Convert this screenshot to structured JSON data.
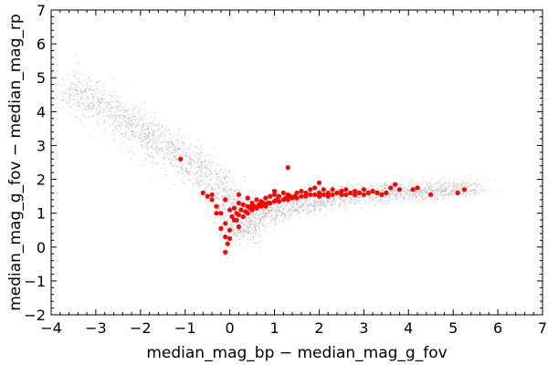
{
  "chart_data": {
    "type": "scatter",
    "title": "",
    "xlabel": "median_mag_bp − median_mag_g_fov",
    "ylabel": "median_mag_g_fov − median_mag_rp",
    "xlim": [
      -4,
      7
    ],
    "ylim": [
      -2,
      7
    ],
    "x_ticks": [
      -4,
      -3,
      -2,
      -1,
      0,
      1,
      2,
      3,
      4,
      5,
      6,
      7
    ],
    "x_tick_labels": [
      "−4",
      "−3",
      "−2",
      "−1",
      "0",
      "1",
      "2",
      "3",
      "4",
      "5",
      "6",
      "7"
    ],
    "y_ticks": [
      -2,
      -1,
      0,
      1,
      2,
      3,
      4,
      5,
      6,
      7
    ],
    "y_tick_labels": [
      "−2",
      "−1",
      "0",
      "1",
      "2",
      "3",
      "4",
      "5",
      "6",
      "7"
    ],
    "grid": false,
    "colors": {
      "background_points": "#bdbdbd",
      "highlighted_points": "#ff0000",
      "axes": "#000000"
    },
    "series": [
      {
        "style": "dense-grey-cloud",
        "color": "#bdbdbd",
        "x": [
          -3.6,
          -3.2,
          -2.8,
          -2.4,
          -2.0,
          -1.6,
          -1.2,
          -0.8,
          -0.4,
          -0.1,
          0.1,
          0.3,
          0.6,
          1.0,
          1.5,
          2.0,
          2.5,
          3.0,
          3.5,
          4.0,
          4.5,
          5.0,
          5.5
        ],
        "y": [
          4.8,
          4.4,
          4.1,
          3.8,
          3.4,
          3.1,
          2.7,
          2.4,
          2.0,
          1.6,
          0.9,
          0.2,
          0.9,
          1.1,
          1.2,
          1.35,
          1.45,
          1.55,
          1.6,
          1.65,
          1.65,
          1.7,
          1.75
        ]
      },
      {
        "style": "red-points",
        "color": "#ff0000",
        "x": [
          -1.1,
          -0.6,
          -0.5,
          -0.4,
          -0.4,
          -0.3,
          -0.2,
          -0.2,
          -0.1,
          -0.1,
          -0.1,
          -0.05,
          0.0,
          0.0,
          0.0,
          0.05,
          0.1,
          0.1,
          0.15,
          0.2,
          0.2,
          0.2,
          0.25,
          0.3,
          0.3,
          0.35,
          0.4,
          0.4,
          0.45,
          0.5,
          0.5,
          0.55,
          0.6,
          0.6,
          0.65,
          0.7,
          0.7,
          0.75,
          0.8,
          0.8,
          0.85,
          0.9,
          0.9,
          1.0,
          1.0,
          1.05,
          1.1,
          1.1,
          1.2,
          1.2,
          1.25,
          1.3,
          1.3,
          1.35,
          1.4,
          1.45,
          1.5,
          1.5,
          1.6,
          1.6,
          1.7,
          1.7,
          1.8,
          1.8,
          1.9,
          1.9,
          2.0,
          2.0,
          2.1,
          2.1,
          2.2,
          2.2,
          2.3,
          2.3,
          2.4,
          2.5,
          2.5,
          2.6,
          2.6,
          2.7,
          2.8,
          2.8,
          2.9,
          3.0,
          3.0,
          3.1,
          3.2,
          3.3,
          3.4,
          3.5,
          3.6,
          3.7,
          3.8,
          4.1,
          4.2,
          4.5,
          5.1,
          5.25,
          1.3,
          0.5,
          -0.3,
          -0.1,
          0.2,
          0.4,
          0.15,
          0.8,
          2.0,
          1.0
        ],
        "y": [
          2.6,
          1.6,
          1.5,
          1.4,
          1.55,
          1.2,
          1.0,
          0.55,
          0.7,
          0.3,
          -0.15,
          0.1,
          0.5,
          1.1,
          0.25,
          0.9,
          0.8,
          1.15,
          1.0,
          0.6,
          0.95,
          1.3,
          1.1,
          0.9,
          1.25,
          1.05,
          1.0,
          1.2,
          1.15,
          1.1,
          1.3,
          1.2,
          1.15,
          1.4,
          1.25,
          1.2,
          1.35,
          1.3,
          1.25,
          1.45,
          1.3,
          1.3,
          1.5,
          1.35,
          1.55,
          1.4,
          1.35,
          1.5,
          1.4,
          1.6,
          1.45,
          1.4,
          1.55,
          1.5,
          1.45,
          1.5,
          1.45,
          1.6,
          1.5,
          1.65,
          1.5,
          1.6,
          1.55,
          1.7,
          1.55,
          1.75,
          1.5,
          1.6,
          1.55,
          1.7,
          1.5,
          1.6,
          1.55,
          1.7,
          1.6,
          1.55,
          1.65,
          1.55,
          1.7,
          1.6,
          1.55,
          1.65,
          1.6,
          1.55,
          1.7,
          1.6,
          1.65,
          1.6,
          1.55,
          1.6,
          1.75,
          1.85,
          1.7,
          1.7,
          1.75,
          1.55,
          1.6,
          1.7,
          2.35,
          1.25,
          1.0,
          1.4,
          1.55,
          1.45,
          0.8,
          1.2,
          1.9,
          1.65
        ]
      }
    ]
  }
}
